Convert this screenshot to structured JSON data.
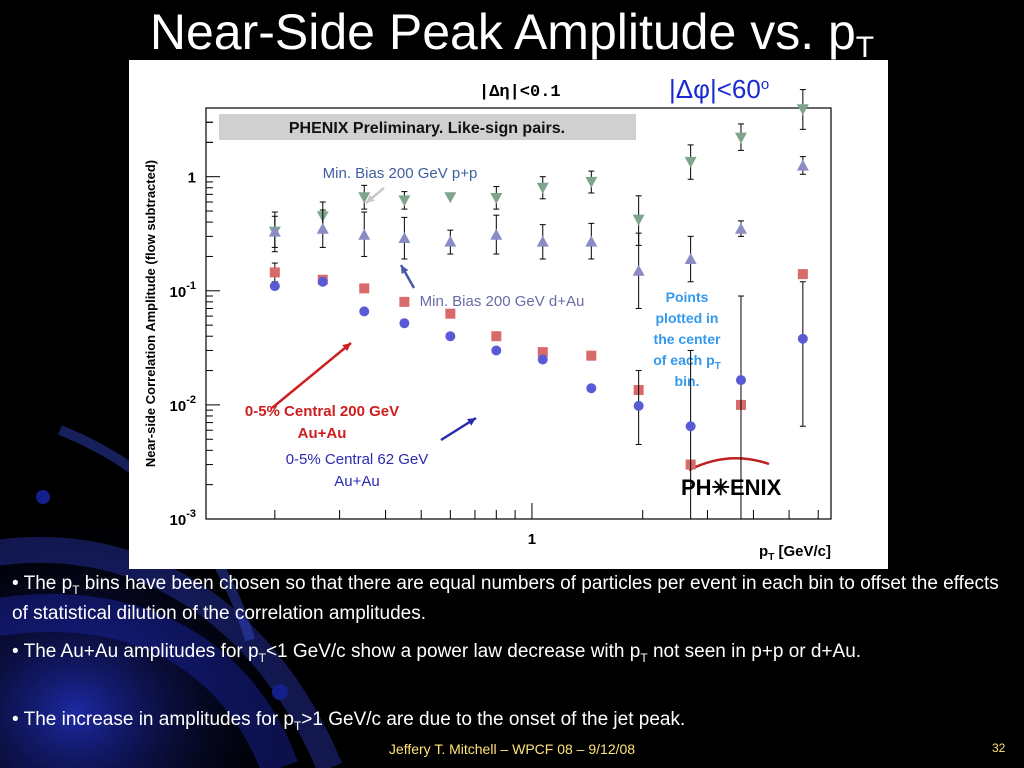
{
  "slide": {
    "title_main": "Near-Side Peak Amplitude vs. p",
    "title_sub": "T",
    "bullets": [
      {
        "a": "• The p",
        "sub": "T",
        "b": " bins have been chosen so that there are equal numbers of particles per event in each bin to offset the effects of statistical dilution of the correlation amplitudes."
      },
      {
        "a": "• The Au+Au amplitudes for p",
        "sub": "T",
        "b": "<1 GeV/c show a power law decrease with p",
        "sub2": "T",
        "c": " not seen in p+p or d+Au."
      },
      {
        "a": "• The increase in amplitudes for p",
        "sub": "T",
        "b": ">1 GeV/c are due to the onset of the jet peak."
      }
    ],
    "footer": "Jeffery T. Mitchell – WPCF 08 – 9/12/08",
    "page_number": "32"
  },
  "chart_data": {
    "type": "scatter",
    "ylabel": "Near-side Correlation Amplitude (flow subtracted)",
    "xlabel_main": "p",
    "xlabel_sub": "T",
    "xlabel_tail": " [GeV/c]",
    "x_scale": "log",
    "y_scale": "log",
    "xlim": [
      0.13,
      6.5
    ],
    "ylim": [
      0.001,
      4
    ],
    "y_tick_labels": [
      {
        "base": "10",
        "exp": "-3",
        "value": 0.001
      },
      {
        "base": "10",
        "exp": "-2",
        "value": 0.01
      },
      {
        "base": "10",
        "exp": "-1",
        "value": 0.1
      },
      {
        "base": "1",
        "exp": "",
        "value": 1
      }
    ],
    "x_tick_labels": [
      {
        "text": "1",
        "value": 1
      }
    ],
    "legend_box": "PHENIX Preliminary. Like-sign pairs.",
    "cut_eta": "|Δη|<0.1",
    "cut_phi": "|Δφ|<60",
    "cut_phi_sup": "o",
    "logo": "PH✳ENIX",
    "note_lines": [
      "Points",
      "plotted in",
      "the center",
      "of each p",
      "bin."
    ],
    "note_sub": "T",
    "series": [
      {
        "name": "Min. Bias 200 GeV p+p",
        "label_lines": [
          "Min. Bias 200 GeV p+p"
        ],
        "color": "#7fa68c",
        "label_color": "#3f5f9f",
        "marker": "triangle-down",
        "points": [
          {
            "x": 0.2,
            "y": 0.33,
            "lo": 0.24,
            "hi": 0.45
          },
          {
            "x": 0.27,
            "y": 0.45,
            "lo": 0.34,
            "hi": 0.6
          },
          {
            "x": 0.35,
            "y": 0.66,
            "lo": 0.52,
            "hi": 0.84
          },
          {
            "x": 0.45,
            "y": 0.62,
            "lo": 0.52,
            "hi": 0.74
          },
          {
            "x": 0.6,
            "y": 0.66
          },
          {
            "x": 0.8,
            "y": 0.65,
            "lo": 0.52,
            "hi": 0.82
          },
          {
            "x": 1.07,
            "y": 0.8,
            "lo": 0.64,
            "hi": 1.0
          },
          {
            "x": 1.45,
            "y": 0.9,
            "lo": 0.72,
            "hi": 1.12
          },
          {
            "x": 1.95,
            "y": 0.42,
            "lo": 0.25,
            "hi": 0.68
          },
          {
            "x": 2.7,
            "y": 1.35,
            "lo": 0.95,
            "hi": 1.9
          },
          {
            "x": 3.7,
            "y": 2.2,
            "lo": 1.7,
            "hi": 2.9
          },
          {
            "x": 5.45,
            "y": 3.9,
            "lo": 2.6,
            "hi": 5.8
          }
        ]
      },
      {
        "name": "Min. Bias 200 GeV d+Au",
        "label_lines": [
          "Min. Bias 200 GeV d+Au"
        ],
        "color": "#8c8cc4",
        "label_color": "#6b6ba8",
        "marker": "triangle-up",
        "points": [
          {
            "x": 0.2,
            "y": 0.33,
            "lo": 0.22,
            "hi": 0.49
          },
          {
            "x": 0.27,
            "y": 0.35,
            "lo": 0.24,
            "hi": 0.51
          },
          {
            "x": 0.35,
            "y": 0.31,
            "lo": 0.2,
            "hi": 0.49
          },
          {
            "x": 0.45,
            "y": 0.29,
            "lo": 0.19,
            "hi": 0.44
          },
          {
            "x": 0.6,
            "y": 0.27,
            "lo": 0.21,
            "hi": 0.34
          },
          {
            "x": 0.8,
            "y": 0.31,
            "lo": 0.21,
            "hi": 0.46
          },
          {
            "x": 1.07,
            "y": 0.27,
            "lo": 0.19,
            "hi": 0.38
          },
          {
            "x": 1.45,
            "y": 0.27,
            "lo": 0.19,
            "hi": 0.39
          },
          {
            "x": 1.95,
            "y": 0.15,
            "lo": 0.07,
            "hi": 0.32
          },
          {
            "x": 2.7,
            "y": 0.19,
            "lo": 0.12,
            "hi": 0.3
          },
          {
            "x": 3.7,
            "y": 0.35,
            "lo": 0.3,
            "hi": 0.41
          },
          {
            "x": 5.45,
            "y": 1.25,
            "lo": 1.05,
            "hi": 1.5
          }
        ]
      },
      {
        "name": "0-5% Central 200 GeV Au+Au",
        "label_lines": [
          "0-5% Central 200 GeV",
          "Au+Au"
        ],
        "color": "#d96a6a",
        "label_color": "#cc1f1f",
        "marker": "square",
        "points": [
          {
            "x": 0.2,
            "y": 0.145,
            "lo": 0.12,
            "hi": 0.175
          },
          {
            "x": 0.27,
            "y": 0.125
          },
          {
            "x": 0.35,
            "y": 0.105
          },
          {
            "x": 0.45,
            "y": 0.08
          },
          {
            "x": 0.6,
            "y": 0.063
          },
          {
            "x": 0.8,
            "y": 0.04
          },
          {
            "x": 1.07,
            "y": 0.029
          },
          {
            "x": 1.45,
            "y": 0.027
          },
          {
            "x": 1.95,
            "y": 0.0135
          },
          {
            "x": 2.7,
            "y": 0.003
          },
          {
            "x": 3.7,
            "y": 0.01
          },
          {
            "x": 5.45,
            "y": 0.14
          }
        ]
      },
      {
        "name": "0-5% Central 62 GeV Au+Au",
        "label_lines": [
          "0-5% Central 62 GeV",
          "Au+Au"
        ],
        "color": "#5a5ad6",
        "label_color": "#2a2ab0",
        "marker": "circle",
        "points": [
          {
            "x": 0.2,
            "y": 0.11
          },
          {
            "x": 0.27,
            "y": 0.12
          },
          {
            "x": 0.35,
            "y": 0.066
          },
          {
            "x": 0.45,
            "y": 0.052
          },
          {
            "x": 0.6,
            "y": 0.04
          },
          {
            "x": 0.8,
            "y": 0.03
          },
          {
            "x": 1.07,
            "y": 0.025
          },
          {
            "x": 1.45,
            "y": 0.014
          },
          {
            "x": 1.95,
            "y": 0.0098,
            "lo": 0.0045,
            "hi": 0.02
          },
          {
            "x": 2.7,
            "y": 0.0065,
            "lo": 0.001,
            "hi": 0.03
          },
          {
            "x": 3.7,
            "y": 0.0165,
            "lo": 0.001,
            "hi": 0.09
          },
          {
            "x": 5.45,
            "y": 0.038,
            "lo": 0.0065,
            "hi": 0.12
          }
        ]
      }
    ]
  }
}
